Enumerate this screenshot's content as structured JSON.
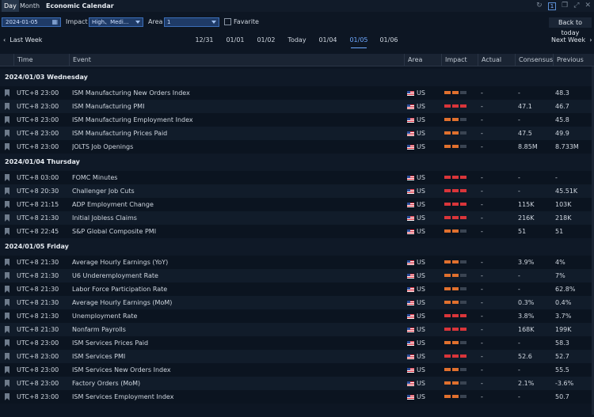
{
  "titlebar": {
    "tab_day": "Day",
    "tab_month": "Month",
    "title": "Economic Calendar",
    "page_badge": "1"
  },
  "toolbar": {
    "date": "2024-01-05",
    "impact_label": "Impact",
    "impact_value": "High、Medi...",
    "area_label": "Area",
    "area_value": "1",
    "favorite_label": "Favarite",
    "back_to_today": "Back to today"
  },
  "nav": {
    "prev_label": "Last Week",
    "next_label": "Next Week",
    "days": [
      "12/31",
      "01/01",
      "01/02",
      "Today",
      "01/04",
      "01/05",
      "01/06"
    ],
    "active_day": "01/05"
  },
  "columns": {
    "time": "Time",
    "event": "Event",
    "area": "Area",
    "impact": "Impact",
    "actual": "Actual",
    "consensus": "Consensus",
    "previous": "Previous"
  },
  "colors": {
    "accent": "#6ea8ff",
    "impact_high": "#d9353a",
    "impact_medium": "#e0702e"
  },
  "groups": [
    {
      "date": "2024/01/03 Wednesday",
      "rows": [
        {
          "time": "UTC+8 23:00",
          "event": "ISM Manufacturing New Orders Index",
          "area": "US",
          "impact": 2,
          "actual": "-",
          "consensus": "-",
          "previous": "48.3"
        },
        {
          "time": "UTC+8 23:00",
          "event": "ISM Manufacturing PMI",
          "area": "US",
          "impact": 3,
          "actual": "-",
          "consensus": "47.1",
          "previous": "46.7"
        },
        {
          "time": "UTC+8 23:00",
          "event": "ISM Manufacturing Employment Index",
          "area": "US",
          "impact": 2,
          "actual": "-",
          "consensus": "-",
          "previous": "45.8"
        },
        {
          "time": "UTC+8 23:00",
          "event": "ISM Manufacturing Prices Paid",
          "area": "US",
          "impact": 2,
          "actual": "-",
          "consensus": "47.5",
          "previous": "49.9"
        },
        {
          "time": "UTC+8 23:00",
          "event": "JOLTS Job Openings",
          "area": "US",
          "impact": 2,
          "actual": "-",
          "consensus": "8.85M",
          "previous": "8.733M"
        }
      ]
    },
    {
      "date": "2024/01/04 Thursday",
      "rows": [
        {
          "time": "UTC+8 03:00",
          "event": "FOMC Minutes",
          "area": "US",
          "impact": 3,
          "actual": "-",
          "consensus": "-",
          "previous": "-"
        },
        {
          "time": "UTC+8 20:30",
          "event": "Challenger Job Cuts",
          "area": "US",
          "impact": 3,
          "actual": "-",
          "consensus": "-",
          "previous": "45.51K"
        },
        {
          "time": "UTC+8 21:15",
          "event": "ADP Employment Change",
          "area": "US",
          "impact": 3,
          "actual": "-",
          "consensus": "115K",
          "previous": "103K"
        },
        {
          "time": "UTC+8 21:30",
          "event": "Initial Jobless Claims",
          "area": "US",
          "impact": 3,
          "actual": "-",
          "consensus": "216K",
          "previous": "218K"
        },
        {
          "time": "UTC+8 22:45",
          "event": "S&P Global Composite PMI",
          "area": "US",
          "impact": 2,
          "actual": "-",
          "consensus": "51",
          "previous": "51"
        }
      ]
    },
    {
      "date": "2024/01/05 Friday",
      "rows": [
        {
          "time": "UTC+8 21:30",
          "event": "Average Hourly Earnings (YoY)",
          "area": "US",
          "impact": 2,
          "actual": "-",
          "consensus": "3.9%",
          "previous": "4%"
        },
        {
          "time": "UTC+8 21:30",
          "event": "U6 Underemployment Rate",
          "area": "US",
          "impact": 2,
          "actual": "-",
          "consensus": "-",
          "previous": "7%"
        },
        {
          "time": "UTC+8 21:30",
          "event": "Labor Force Participation Rate",
          "area": "US",
          "impact": 2,
          "actual": "-",
          "consensus": "-",
          "previous": "62.8%"
        },
        {
          "time": "UTC+8 21:30",
          "event": "Average Hourly Earnings (MoM)",
          "area": "US",
          "impact": 2,
          "actual": "-",
          "consensus": "0.3%",
          "previous": "0.4%"
        },
        {
          "time": "UTC+8 21:30",
          "event": "Unemployment Rate",
          "area": "US",
          "impact": 3,
          "actual": "-",
          "consensus": "3.8%",
          "previous": "3.7%"
        },
        {
          "time": "UTC+8 21:30",
          "event": "Nonfarm Payrolls",
          "area": "US",
          "impact": 3,
          "actual": "-",
          "consensus": "168K",
          "previous": "199K"
        },
        {
          "time": "UTC+8 23:00",
          "event": "ISM Services Prices Paid",
          "area": "US",
          "impact": 2,
          "actual": "-",
          "consensus": "-",
          "previous": "58.3"
        },
        {
          "time": "UTC+8 23:00",
          "event": "ISM Services PMI",
          "area": "US",
          "impact": 3,
          "actual": "-",
          "consensus": "52.6",
          "previous": "52.7"
        },
        {
          "time": "UTC+8 23:00",
          "event": "ISM Services New Orders Index",
          "area": "US",
          "impact": 2,
          "actual": "-",
          "consensus": "-",
          "previous": "55.5"
        },
        {
          "time": "UTC+8 23:00",
          "event": "Factory Orders (MoM)",
          "area": "US",
          "impact": 2,
          "actual": "-",
          "consensus": "2.1%",
          "previous": "-3.6%"
        },
        {
          "time": "UTC+8 23:00",
          "event": "ISM Services Employment Index",
          "area": "US",
          "impact": 2,
          "actual": "-",
          "consensus": "-",
          "previous": "50.7"
        }
      ]
    }
  ]
}
